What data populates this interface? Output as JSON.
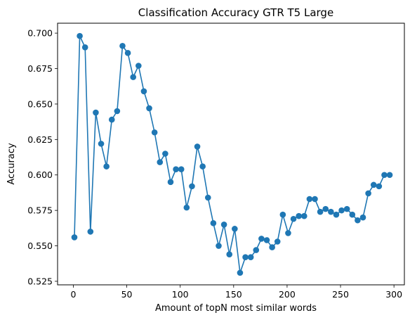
{
  "chart_data": {
    "type": "line",
    "title": "Classification Accuracy GTR T5 Large",
    "xlabel": "Amount of topN most similar words",
    "ylabel": "Accuracy",
    "xlim": [
      -14.75,
      309.75
    ],
    "ylim": [
      0.5225,
      0.707
    ],
    "xticks": [
      0,
      50,
      100,
      150,
      200,
      250,
      300
    ],
    "xtick_labels": [
      "0",
      "50",
      "100",
      "150",
      "200",
      "250",
      "300"
    ],
    "yticks": [
      0.525,
      0.55,
      0.575,
      0.6,
      0.625,
      0.65,
      0.675,
      0.7
    ],
    "ytick_labels": [
      "0.525",
      "0.550",
      "0.575",
      "0.600",
      "0.625",
      "0.650",
      "0.675",
      "0.700"
    ],
    "grid": false,
    "marker": "circle",
    "color": "#1f77b4",
    "series": [
      {
        "x": [
          1,
          6,
          11,
          16,
          21,
          26,
          31,
          36,
          41,
          46,
          51,
          56,
          61,
          66,
          71,
          76,
          81,
          86,
          91,
          96,
          101,
          106,
          111,
          116,
          121,
          126,
          131,
          136,
          141,
          146,
          151,
          156,
          161,
          166,
          171,
          176,
          181,
          186,
          191,
          196,
          201,
          206,
          211,
          216,
          221,
          226,
          231,
          236,
          241,
          246,
          251,
          256,
          261,
          266,
          271,
          276,
          281,
          286,
          291,
          296
        ],
        "y": [
          0.556,
          0.698,
          0.69,
          0.56,
          0.644,
          0.622,
          0.606,
          0.639,
          0.645,
          0.691,
          0.686,
          0.669,
          0.677,
          0.659,
          0.647,
          0.63,
          0.609,
          0.615,
          0.595,
          0.604,
          0.604,
          0.577,
          0.592,
          0.62,
          0.606,
          0.584,
          0.566,
          0.55,
          0.565,
          0.544,
          0.562,
          0.531,
          0.542,
          0.542,
          0.547,
          0.555,
          0.554,
          0.549,
          0.553,
          0.572,
          0.559,
          0.569,
          0.571,
          0.571,
          0.583,
          0.583,
          0.574,
          0.576,
          0.574,
          0.572,
          0.575,
          0.576,
          0.572,
          0.568,
          0.57,
          0.587,
          0.593,
          0.592,
          0.6,
          0.6
        ]
      }
    ]
  }
}
